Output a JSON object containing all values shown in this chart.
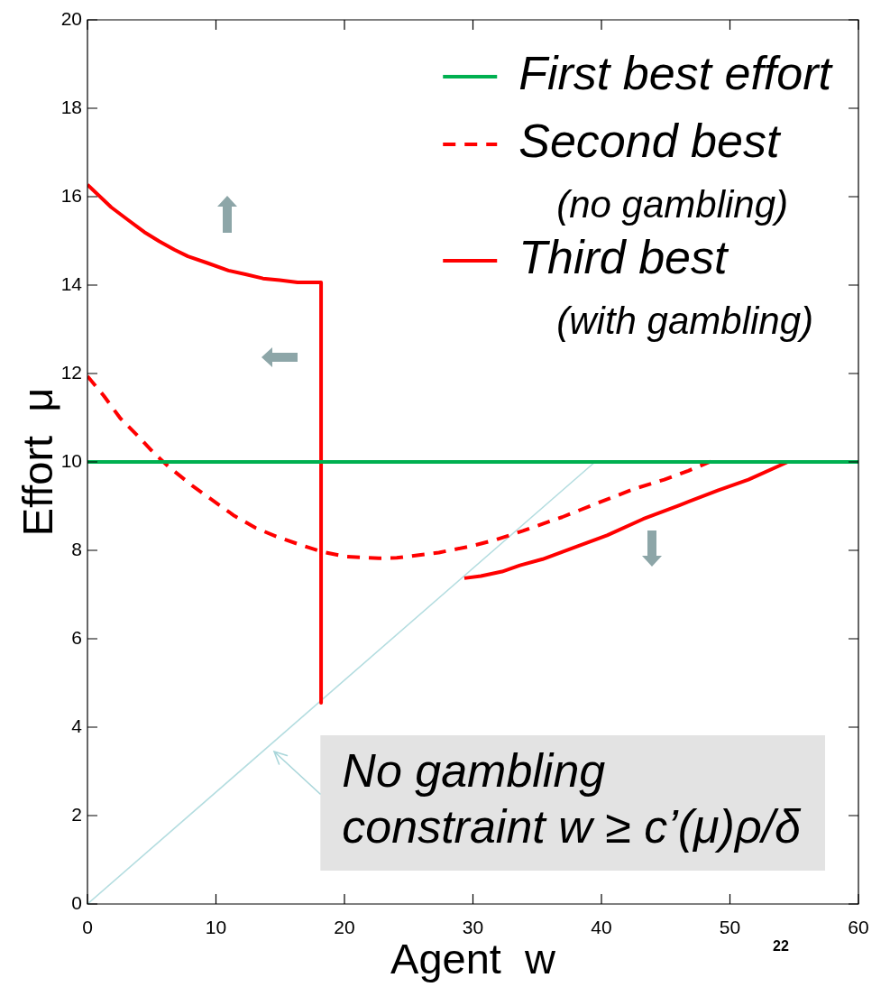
{
  "chart_data": {
    "type": "line",
    "xlabel": "Agent  w",
    "ylabel": "Effort  μ",
    "xlim": [
      0,
      60
    ],
    "xticks": [
      0,
      10,
      20,
      30,
      40,
      50,
      60
    ],
    "ylim": [
      0,
      20
    ],
    "yticks": [
      0,
      2,
      4,
      6,
      8,
      10,
      12,
      14,
      16,
      18,
      20
    ],
    "grid": false,
    "legend": "top right",
    "marker": "none",
    "series": [
      {
        "name": "First best effort",
        "color": "#00b050",
        "x": [
          0,
          60
        ],
        "values": [
          10,
          10
        ]
      },
      {
        "name": "Second best\n(no gambling)",
        "color": "#ff0000",
        "line_style": "dashed",
        "x": [
          0,
          1.26,
          2.55,
          3.95,
          5.24,
          6.29,
          8.16,
          9.8,
          11.44,
          13.07,
          14.71,
          16.81,
          18.22,
          20.09,
          22.67,
          24.07,
          25.94,
          27.35,
          29.92,
          31.79,
          33.89,
          35.53,
          36.93,
          39.27,
          42.55,
          44.89,
          46.76,
          48.51
        ],
        "values": [
          11.94,
          11.5,
          10.99,
          10.58,
          10.18,
          9.9,
          9.46,
          9.12,
          8.78,
          8.51,
          8.31,
          8.1,
          7.97,
          7.86,
          7.82,
          7.83,
          7.9,
          7.95,
          8.1,
          8.24,
          8.44,
          8.61,
          8.75,
          9.02,
          9.39,
          9.6,
          9.8,
          10.01
        ]
      },
      {
        "name": "Third best\n(with gambling)",
        "color": "#ff0000",
        "x": [
          0,
          1.85,
          3.13,
          4.42,
          5.59,
          6.76,
          7.82,
          9.33,
          10.97,
          12.37,
          13.66,
          14.95,
          16.35,
          18.18,
          18.18,
          null,
          29.33,
          30.62,
          32.26,
          33.66,
          35.42,
          38.11,
          40.44,
          43.25,
          46.06,
          49.1,
          51.44,
          54.5
        ],
        "values": [
          16.27,
          15.76,
          15.48,
          15.2,
          14.99,
          14.8,
          14.65,
          14.5,
          14.33,
          14.24,
          14.15,
          14.11,
          14.06,
          14.06,
          4.55,
          null,
          7.37,
          7.42,
          7.52,
          7.66,
          7.8,
          8.09,
          8.34,
          8.71,
          9.02,
          9.36,
          9.6,
          10.0
        ]
      },
      {
        "color": "#b4dde0",
        "x": [
          0,
          39.5
        ],
        "values": [
          0,
          10
        ]
      }
    ],
    "annotations": [
      "No gambling\nconstraint w ≥ c’(μ)ρ/δ",
      "22"
    ]
  }
}
